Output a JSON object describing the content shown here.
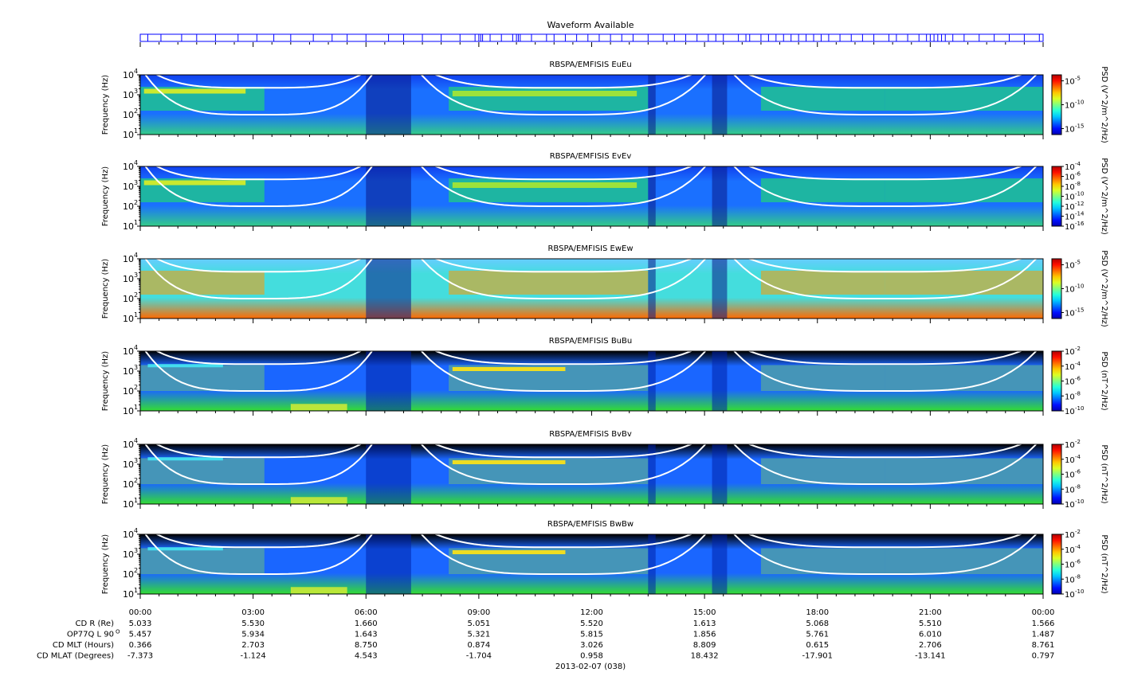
{
  "waveform": {
    "title": "Waveform Available",
    "color": "#0000ff",
    "marks_hours": [
      0.2,
      0.55,
      1.1,
      1.5,
      2.0,
      2.6,
      3.1,
      3.55,
      4.0,
      4.6,
      5.1,
      5.5,
      6.0,
      6.6,
      7.0,
      7.5,
      8.0,
      8.5,
      8.9,
      9.0,
      9.05,
      9.1,
      9.3,
      9.6,
      9.9,
      10.0,
      10.05,
      10.1,
      10.4,
      10.8,
      11.0,
      11.3,
      11.6,
      11.9,
      12.2,
      12.5,
      12.8,
      13.1,
      13.5,
      13.9,
      14.2,
      14.5,
      14.8,
      15.1,
      15.3,
      15.5,
      15.9,
      16.1,
      16.2,
      16.5,
      16.7,
      16.9,
      17.1,
      17.3,
      17.5,
      17.7,
      17.9,
      18.1,
      18.3,
      18.6,
      18.9,
      19.2,
      19.5,
      19.9,
      20.1,
      20.4,
      20.7,
      20.9,
      21.0,
      21.1,
      21.2,
      21.3,
      21.4,
      21.6,
      21.9,
      22.3,
      22.7,
      23.1,
      23.5,
      23.9
    ]
  },
  "chart_data": [
    {
      "type": "heatmap",
      "title": "RBSPA/EMFISIS  EuEu",
      "ylabel": "Frequency (Hz)",
      "yscale": "log",
      "ylim": [
        10,
        10000
      ],
      "yticks": [
        "10",
        "10",
        "10",
        "10"
      ],
      "yexp": [
        "1",
        "2",
        "3",
        "4"
      ],
      "xlim": [
        "00:00",
        "24:00"
      ],
      "colorbar": {
        "label": "PSD (V^2/m^2/Hz)",
        "ticks": [
          {
            "base": "10",
            "exp": "-5",
            "f": 0.9
          },
          {
            "base": "10",
            "exp": "-10",
            "f": 0.5
          },
          {
            "base": "10",
            "exp": "-15",
            "f": 0.1
          }
        ]
      }
    },
    {
      "type": "heatmap",
      "title": "RBSPA/EMFISIS  EvEv",
      "ylabel": "Frequency (Hz)",
      "yscale": "log",
      "ylim": [
        10,
        10000
      ],
      "yticks": [
        "10",
        "10",
        "10",
        "10"
      ],
      "yexp": [
        "1",
        "2",
        "3",
        "4"
      ],
      "xlim": [
        "00:00",
        "24:00"
      ],
      "colorbar": {
        "label": "PSD (V^2/m^2/Hz)",
        "ticks": [
          {
            "base": "10",
            "exp": "-4",
            "f": 1.0
          },
          {
            "base": "10",
            "exp": "-6",
            "f": 0.833
          },
          {
            "base": "10",
            "exp": "-8",
            "f": 0.667
          },
          {
            "base": "10",
            "exp": "-10",
            "f": 0.5
          },
          {
            "base": "10",
            "exp": "-12",
            "f": 0.333
          },
          {
            "base": "10",
            "exp": "-14",
            "f": 0.167
          },
          {
            "base": "10",
            "exp": "-16",
            "f": 0.0
          }
        ]
      }
    },
    {
      "type": "heatmap",
      "title": "RBSPA/EMFISIS  EwEw",
      "ylabel": "Frequency (Hz)",
      "yscale": "log",
      "ylim": [
        10,
        10000
      ],
      "yticks": [
        "10",
        "10",
        "10",
        "10"
      ],
      "yexp": [
        "1",
        "2",
        "3",
        "4"
      ],
      "xlim": [
        "00:00",
        "24:00"
      ],
      "colorbar": {
        "label": "PSD (V^2/m^2/Hz)",
        "ticks": [
          {
            "base": "10",
            "exp": "-5",
            "f": 0.9
          },
          {
            "base": "10",
            "exp": "-10",
            "f": 0.5
          },
          {
            "base": "10",
            "exp": "-15",
            "f": 0.1
          }
        ]
      }
    },
    {
      "type": "heatmap",
      "title": "RBSPA/EMFISIS  BuBu",
      "ylabel": "Frequency (Hz)",
      "yscale": "log",
      "ylim": [
        10,
        10000
      ],
      "yticks": [
        "10",
        "10",
        "10",
        "10"
      ],
      "yexp": [
        "1",
        "2",
        "3",
        "4"
      ],
      "xlim": [
        "00:00",
        "24:00"
      ],
      "colorbar": {
        "label": "PSD (nT^2/Hz)",
        "ticks": [
          {
            "base": "10",
            "exp": "-2",
            "f": 1.0
          },
          {
            "base": "10",
            "exp": "-4",
            "f": 0.75
          },
          {
            "base": "10",
            "exp": "-6",
            "f": 0.5
          },
          {
            "base": "10",
            "exp": "-8",
            "f": 0.25
          },
          {
            "base": "10",
            "exp": "-10",
            "f": 0.0
          }
        ]
      }
    },
    {
      "type": "heatmap",
      "title": "RBSPA/EMFISIS  BvBv",
      "ylabel": "Frequency (Hz)",
      "yscale": "log",
      "ylim": [
        10,
        10000
      ],
      "yticks": [
        "10",
        "10",
        "10",
        "10"
      ],
      "yexp": [
        "1",
        "2",
        "3",
        "4"
      ],
      "xlim": [
        "00:00",
        "24:00"
      ],
      "colorbar": {
        "label": "PSD (nT^2/Hz)",
        "ticks": [
          {
            "base": "10",
            "exp": "-2",
            "f": 1.0
          },
          {
            "base": "10",
            "exp": "-4",
            "f": 0.75
          },
          {
            "base": "10",
            "exp": "-6",
            "f": 0.5
          },
          {
            "base": "10",
            "exp": "-8",
            "f": 0.25
          },
          {
            "base": "10",
            "exp": "-10",
            "f": 0.0
          }
        ]
      }
    },
    {
      "type": "heatmap",
      "title": "RBSPA/EMFISIS  BwBw",
      "ylabel": "Frequency (Hz)",
      "yscale": "log",
      "ylim": [
        10,
        10000
      ],
      "yticks": [
        "10",
        "10",
        "10",
        "10"
      ],
      "yexp": [
        "1",
        "2",
        "3",
        "4"
      ],
      "xlim": [
        "00:00",
        "24:00"
      ],
      "colorbar": {
        "label": "PSD (nT^2/Hz)",
        "ticks": [
          {
            "base": "10",
            "exp": "-2",
            "f": 1.0
          },
          {
            "base": "10",
            "exp": "-4",
            "f": 0.75
          },
          {
            "base": "10",
            "exp": "-6",
            "f": 0.5
          },
          {
            "base": "10",
            "exp": "-8",
            "f": 0.25
          },
          {
            "base": "10",
            "exp": "-10",
            "f": 0.0
          }
        ]
      }
    }
  ],
  "xaxis": {
    "ticks": [
      "00:00",
      "03:00",
      "06:00",
      "09:00",
      "12:00",
      "15:00",
      "18:00",
      "21:00",
      "00:00"
    ],
    "date": "2013-02-07 (038)"
  },
  "ephemeris": [
    {
      "label": "CD R (Re)",
      "values": [
        "5.033",
        "5.530",
        "1.660",
        "5.051",
        "5.520",
        "1.613",
        "5.068",
        "5.510",
        "1.566"
      ]
    },
    {
      "label": "OP77Q L 90",
      "sup": "O",
      "values": [
        "5.457",
        "5.934",
        "1.643",
        "5.321",
        "5.815",
        "1.856",
        "5.761",
        "6.010",
        "1.487"
      ]
    },
    {
      "label": "CD MLT (Hours)",
      "values": [
        "0.366",
        "2.703",
        "8.750",
        "0.874",
        "3.026",
        "8.809",
        "0.615",
        "2.706",
        "8.761"
      ]
    },
    {
      "label": "CD MLAT (Degrees)",
      "values": [
        "-7.373",
        "-1.124",
        "4.543",
        "-1.704",
        "0.958",
        "18.432",
        "-17.901",
        "-13.141",
        "0.797"
      ]
    }
  ]
}
